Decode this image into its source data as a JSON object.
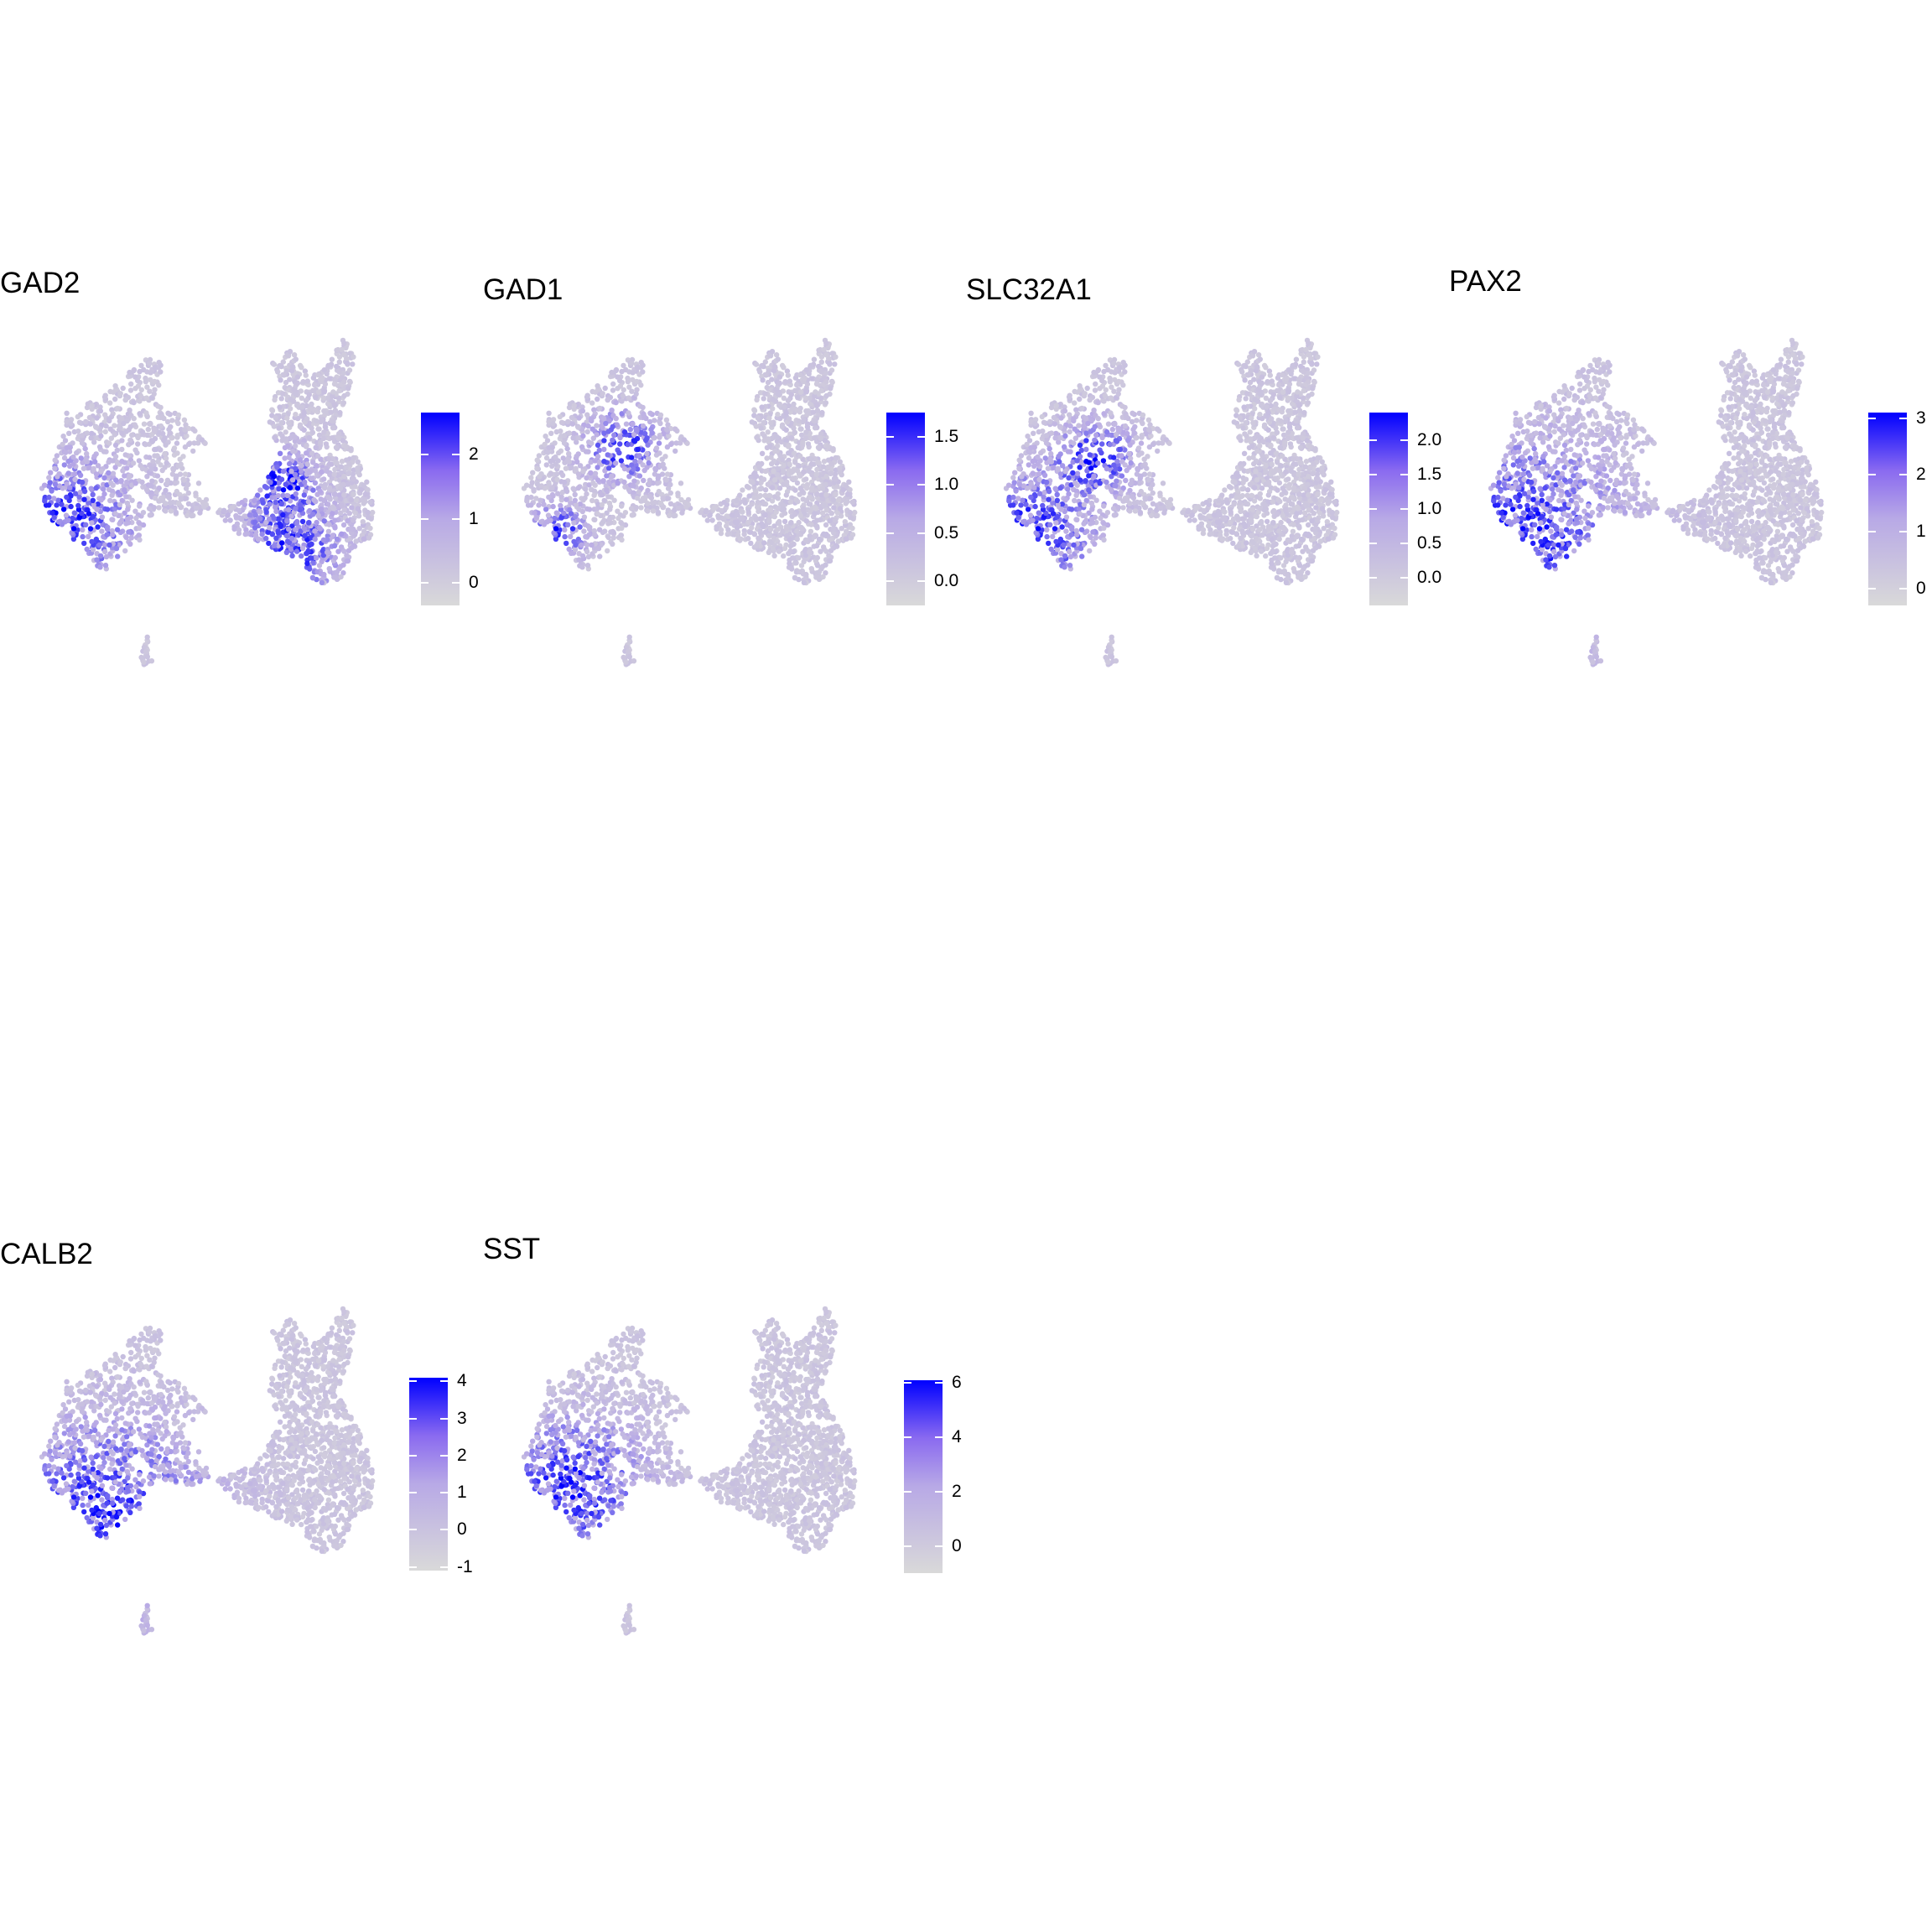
{
  "figure": {
    "panels": [
      {
        "gene": "GAD2",
        "legend_ticks": [
          "0",
          "1",
          "2"
        ],
        "legend_tick_values": [
          0,
          1,
          2
        ],
        "legend_range": [
          -0.35,
          2.65
        ],
        "hotspots": [
          [
            -6.8,
            -1.6,
            1.6
          ],
          [
            0.7,
            -0.1,
            0.8
          ],
          [
            1.0,
            -2.6,
            1.2
          ]
        ]
      },
      {
        "gene": "GAD1",
        "legend_ticks": [
          "0.0",
          "0.5",
          "1.0",
          "1.5"
        ],
        "legend_tick_values": [
          0,
          0.5,
          1,
          1.5
        ],
        "legend_range": [
          -0.25,
          1.75
        ],
        "hotspots": [
          [
            -4.3,
            1.2,
            0.9
          ],
          [
            -6.5,
            -2.0,
            0.7
          ]
        ]
      },
      {
        "gene": "SLC32A1",
        "legend_ticks": [
          "0.0",
          "0.5",
          "1.0",
          "1.5",
          "2.0"
        ],
        "legend_tick_values": [
          0,
          0.5,
          1,
          1.5,
          2
        ],
        "legend_range": [
          -0.4,
          2.4
        ],
        "hotspots": [
          [
            -6.9,
            -2.1,
            1.6
          ],
          [
            -4.6,
            0.8,
            0.9
          ]
        ]
      },
      {
        "gene": "PAX2",
        "legend_ticks": [
          "0",
          "1",
          "2",
          "3"
        ],
        "legend_tick_values": [
          0,
          1,
          2,
          3
        ],
        "legend_range": [
          -0.3,
          3.1
        ],
        "hotspots": [
          [
            -6.7,
            -2.3,
            2.6
          ]
        ]
      },
      {
        "gene": "CALB2",
        "legend_ticks": [
          "-1",
          "0",
          "1",
          "2",
          "3",
          "4"
        ],
        "legend_tick_values": [
          -1,
          0,
          1,
          2,
          3,
          4
        ],
        "legend_range": [
          -1.1,
          4.1
        ],
        "hotspots": [
          [
            -5.5,
            -2.6,
            2.5
          ]
        ]
      },
      {
        "gene": "SST",
        "legend_ticks": [
          "0",
          "2",
          "4",
          "6"
        ],
        "legend_tick_values": [
          0,
          2,
          4,
          6
        ],
        "legend_range": [
          -1.0,
          6.1
        ],
        "hotspots": [
          [
            -6.0,
            -1.5,
            1.8
          ]
        ]
      }
    ]
  },
  "chart_data": {
    "type": "scatter",
    "description_source": "feature plots of gene expression on a 2D embedding",
    "genes": [
      "GAD2",
      "GAD1",
      "SLC32A1",
      "PAX2",
      "CALB2",
      "SST"
    ],
    "color_scale": {
      "low": "#d9d9d9",
      "mid": "#b8a9e6",
      "high": "#0000ff"
    },
    "legend_ranges": {
      "GAD2": [
        -0.35,
        2.65
      ],
      "GAD1": [
        -0.25,
        1.75
      ],
      "SLC32A1": [
        -0.4,
        2.4
      ],
      "PAX2": [
        -0.3,
        3.1
      ],
      "CALB2": [
        -1.1,
        4.1
      ],
      "SST": [
        -1.0,
        6.1
      ]
    },
    "clusters": [
      {
        "name": "",
        "polygon": [
          [
            -7.9,
            -0.6
          ],
          [
            -7.2,
            0.8
          ],
          [
            -6.9,
            2.4
          ],
          [
            -5.6,
            3.0
          ],
          [
            -4.8,
            3.8
          ],
          [
            -3.9,
            4.7
          ],
          [
            -3.5,
            4.2
          ],
          [
            -3.7,
            3.0
          ],
          [
            -2.6,
            2.1
          ],
          [
            -2.0,
            1.3
          ],
          [
            -2.8,
            0.6
          ],
          [
            -2.2,
            -0.2
          ],
          [
            -1.8,
            -1.2
          ],
          [
            -2.8,
            -1.5
          ],
          [
            -3.8,
            -1.1
          ],
          [
            -4.2,
            -2.2
          ],
          [
            -5.0,
            -2.9
          ],
          [
            -5.6,
            -3.5
          ],
          [
            -6.2,
            -2.6
          ],
          [
            -7.3,
            -1.6
          ]
        ]
      },
      {
        "name": "",
        "polygon": [
          [
            -1.6,
            -1.2
          ],
          [
            -0.2,
            -0.6
          ],
          [
            0.6,
            0.8
          ],
          [
            0.2,
            2.2
          ],
          [
            0.6,
            3.6
          ],
          [
            0.3,
            4.4
          ],
          [
            1.0,
            4.8
          ],
          [
            1.6,
            3.8
          ],
          [
            2.1,
            4.0
          ],
          [
            2.8,
            5.2
          ],
          [
            3.2,
            4.6
          ],
          [
            3.0,
            3.1
          ],
          [
            2.6,
            2.0
          ],
          [
            3.4,
            0.6
          ],
          [
            3.9,
            -0.9
          ],
          [
            3.8,
            -2.2
          ],
          [
            3.1,
            -2.6
          ],
          [
            2.8,
            -3.7
          ],
          [
            1.9,
            -4.0
          ],
          [
            1.4,
            -3.0
          ],
          [
            0.6,
            -2.7
          ],
          [
            -0.2,
            -2.3
          ],
          [
            -0.9,
            -2.0
          ]
        ]
      },
      {
        "name": "",
        "polygon": [
          [
            -4.3,
            -6.7
          ],
          [
            -4.0,
            -5.6
          ],
          [
            -4.0,
            -6.2
          ],
          [
            -3.8,
            -6.8
          ],
          [
            -4.1,
            -7.0
          ]
        ]
      }
    ]
  }
}
